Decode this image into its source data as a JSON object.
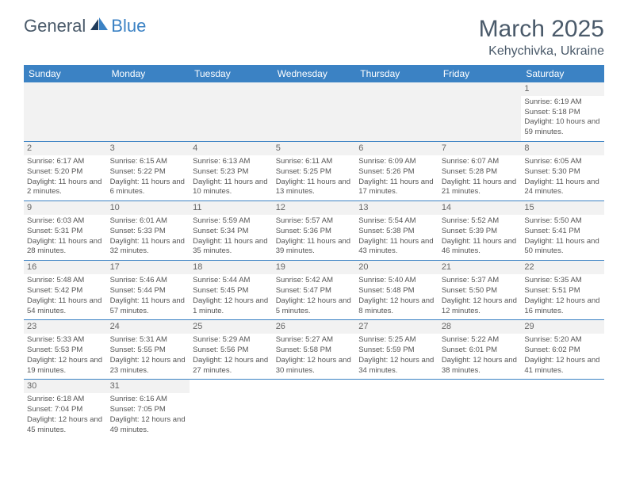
{
  "logo": {
    "text1": "General",
    "text2": "Blue"
  },
  "title": "March 2025",
  "location": "Kehychivka, Ukraine",
  "day_headers": [
    "Sunday",
    "Monday",
    "Tuesday",
    "Wednesday",
    "Thursday",
    "Friday",
    "Saturday"
  ],
  "colors": {
    "header_bg": "#3b82c4",
    "header_text": "#ffffff",
    "text": "#555555",
    "title_text": "#4a5a6a",
    "daynum_bg": "#f2f2f2",
    "border": "#3b82c4"
  },
  "weeks": [
    [
      null,
      null,
      null,
      null,
      null,
      null,
      {
        "n": "1",
        "sr": "Sunrise: 6:19 AM",
        "ss": "Sunset: 5:18 PM",
        "dl": "Daylight: 10 hours and 59 minutes."
      }
    ],
    [
      {
        "n": "2",
        "sr": "Sunrise: 6:17 AM",
        "ss": "Sunset: 5:20 PM",
        "dl": "Daylight: 11 hours and 2 minutes."
      },
      {
        "n": "3",
        "sr": "Sunrise: 6:15 AM",
        "ss": "Sunset: 5:22 PM",
        "dl": "Daylight: 11 hours and 6 minutes."
      },
      {
        "n": "4",
        "sr": "Sunrise: 6:13 AM",
        "ss": "Sunset: 5:23 PM",
        "dl": "Daylight: 11 hours and 10 minutes."
      },
      {
        "n": "5",
        "sr": "Sunrise: 6:11 AM",
        "ss": "Sunset: 5:25 PM",
        "dl": "Daylight: 11 hours and 13 minutes."
      },
      {
        "n": "6",
        "sr": "Sunrise: 6:09 AM",
        "ss": "Sunset: 5:26 PM",
        "dl": "Daylight: 11 hours and 17 minutes."
      },
      {
        "n": "7",
        "sr": "Sunrise: 6:07 AM",
        "ss": "Sunset: 5:28 PM",
        "dl": "Daylight: 11 hours and 21 minutes."
      },
      {
        "n": "8",
        "sr": "Sunrise: 6:05 AM",
        "ss": "Sunset: 5:30 PM",
        "dl": "Daylight: 11 hours and 24 minutes."
      }
    ],
    [
      {
        "n": "9",
        "sr": "Sunrise: 6:03 AM",
        "ss": "Sunset: 5:31 PM",
        "dl": "Daylight: 11 hours and 28 minutes."
      },
      {
        "n": "10",
        "sr": "Sunrise: 6:01 AM",
        "ss": "Sunset: 5:33 PM",
        "dl": "Daylight: 11 hours and 32 minutes."
      },
      {
        "n": "11",
        "sr": "Sunrise: 5:59 AM",
        "ss": "Sunset: 5:34 PM",
        "dl": "Daylight: 11 hours and 35 minutes."
      },
      {
        "n": "12",
        "sr": "Sunrise: 5:57 AM",
        "ss": "Sunset: 5:36 PM",
        "dl": "Daylight: 11 hours and 39 minutes."
      },
      {
        "n": "13",
        "sr": "Sunrise: 5:54 AM",
        "ss": "Sunset: 5:38 PM",
        "dl": "Daylight: 11 hours and 43 minutes."
      },
      {
        "n": "14",
        "sr": "Sunrise: 5:52 AM",
        "ss": "Sunset: 5:39 PM",
        "dl": "Daylight: 11 hours and 46 minutes."
      },
      {
        "n": "15",
        "sr": "Sunrise: 5:50 AM",
        "ss": "Sunset: 5:41 PM",
        "dl": "Daylight: 11 hours and 50 minutes."
      }
    ],
    [
      {
        "n": "16",
        "sr": "Sunrise: 5:48 AM",
        "ss": "Sunset: 5:42 PM",
        "dl": "Daylight: 11 hours and 54 minutes."
      },
      {
        "n": "17",
        "sr": "Sunrise: 5:46 AM",
        "ss": "Sunset: 5:44 PM",
        "dl": "Daylight: 11 hours and 57 minutes."
      },
      {
        "n": "18",
        "sr": "Sunrise: 5:44 AM",
        "ss": "Sunset: 5:45 PM",
        "dl": "Daylight: 12 hours and 1 minute."
      },
      {
        "n": "19",
        "sr": "Sunrise: 5:42 AM",
        "ss": "Sunset: 5:47 PM",
        "dl": "Daylight: 12 hours and 5 minutes."
      },
      {
        "n": "20",
        "sr": "Sunrise: 5:40 AM",
        "ss": "Sunset: 5:48 PM",
        "dl": "Daylight: 12 hours and 8 minutes."
      },
      {
        "n": "21",
        "sr": "Sunrise: 5:37 AM",
        "ss": "Sunset: 5:50 PM",
        "dl": "Daylight: 12 hours and 12 minutes."
      },
      {
        "n": "22",
        "sr": "Sunrise: 5:35 AM",
        "ss": "Sunset: 5:51 PM",
        "dl": "Daylight: 12 hours and 16 minutes."
      }
    ],
    [
      {
        "n": "23",
        "sr": "Sunrise: 5:33 AM",
        "ss": "Sunset: 5:53 PM",
        "dl": "Daylight: 12 hours and 19 minutes."
      },
      {
        "n": "24",
        "sr": "Sunrise: 5:31 AM",
        "ss": "Sunset: 5:55 PM",
        "dl": "Daylight: 12 hours and 23 minutes."
      },
      {
        "n": "25",
        "sr": "Sunrise: 5:29 AM",
        "ss": "Sunset: 5:56 PM",
        "dl": "Daylight: 12 hours and 27 minutes."
      },
      {
        "n": "26",
        "sr": "Sunrise: 5:27 AM",
        "ss": "Sunset: 5:58 PM",
        "dl": "Daylight: 12 hours and 30 minutes."
      },
      {
        "n": "27",
        "sr": "Sunrise: 5:25 AM",
        "ss": "Sunset: 5:59 PM",
        "dl": "Daylight: 12 hours and 34 minutes."
      },
      {
        "n": "28",
        "sr": "Sunrise: 5:22 AM",
        "ss": "Sunset: 6:01 PM",
        "dl": "Daylight: 12 hours and 38 minutes."
      },
      {
        "n": "29",
        "sr": "Sunrise: 5:20 AM",
        "ss": "Sunset: 6:02 PM",
        "dl": "Daylight: 12 hours and 41 minutes."
      }
    ],
    [
      {
        "n": "30",
        "sr": "Sunrise: 6:18 AM",
        "ss": "Sunset: 7:04 PM",
        "dl": "Daylight: 12 hours and 45 minutes."
      },
      {
        "n": "31",
        "sr": "Sunrise: 6:16 AM",
        "ss": "Sunset: 7:05 PM",
        "dl": "Daylight: 12 hours and 49 minutes."
      },
      null,
      null,
      null,
      null,
      null
    ]
  ]
}
